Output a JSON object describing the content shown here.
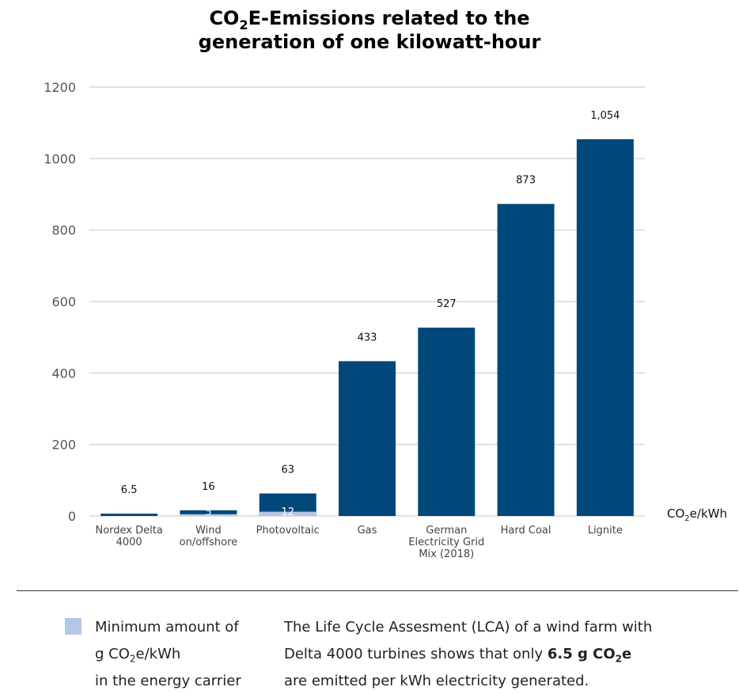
{
  "title": {
    "part1": "CO",
    "sub": "2",
    "part2": "E-Emissions related to the",
    "line2": "generation of one kilowatt-hour"
  },
  "chart_data": {
    "type": "bar",
    "categories": [
      [
        "Nordex Delta",
        "4000"
      ],
      [
        "Wind",
        "on/offshore"
      ],
      [
        "Photovoltaic"
      ],
      [
        "Gas"
      ],
      [
        "German",
        "Electricity Grid",
        "Mix (2018)"
      ],
      [
        "Hard Coal"
      ],
      [
        "Lignite"
      ]
    ],
    "values": [
      6.5,
      16,
      63,
      433,
      527,
      873,
      1054
    ],
    "value_labels": [
      "6.5",
      "16",
      "63",
      "433",
      "527",
      "873",
      "1,054"
    ],
    "minimum_values": [
      null,
      5,
      12,
      null,
      null,
      null,
      null
    ],
    "minimum_labels": [
      "",
      "5",
      "12",
      "",
      "",
      "",
      ""
    ],
    "unit_label": "CO2e/kWh",
    "unit_parts": {
      "a": "CO",
      "sub": "2",
      "b": "e/kWh"
    },
    "ylim": [
      0,
      1200
    ],
    "yticks": [
      0,
      200,
      400,
      600,
      800,
      1000,
      1200
    ],
    "grid": true,
    "colors": {
      "bar": "#00487a",
      "minimum": "#b4c7e7",
      "grid": "#d9d9d9"
    }
  },
  "legend": {
    "line1": "Minimum amount of",
    "line2a": "g CO",
    "line2sub": "2",
    "line2b": "e/kWh",
    "line3": "in the energy carrier"
  },
  "note": {
    "line1": "The Life Cycle Assesment (LCA) of a wind farm with",
    "line2a": "Delta 4000 turbines shows that only ",
    "line2b_bold": "6.5 g CO",
    "line2b_sub": "2",
    "line2c_bold": "e",
    "line3": "are emitted per kWh electricity generated."
  }
}
